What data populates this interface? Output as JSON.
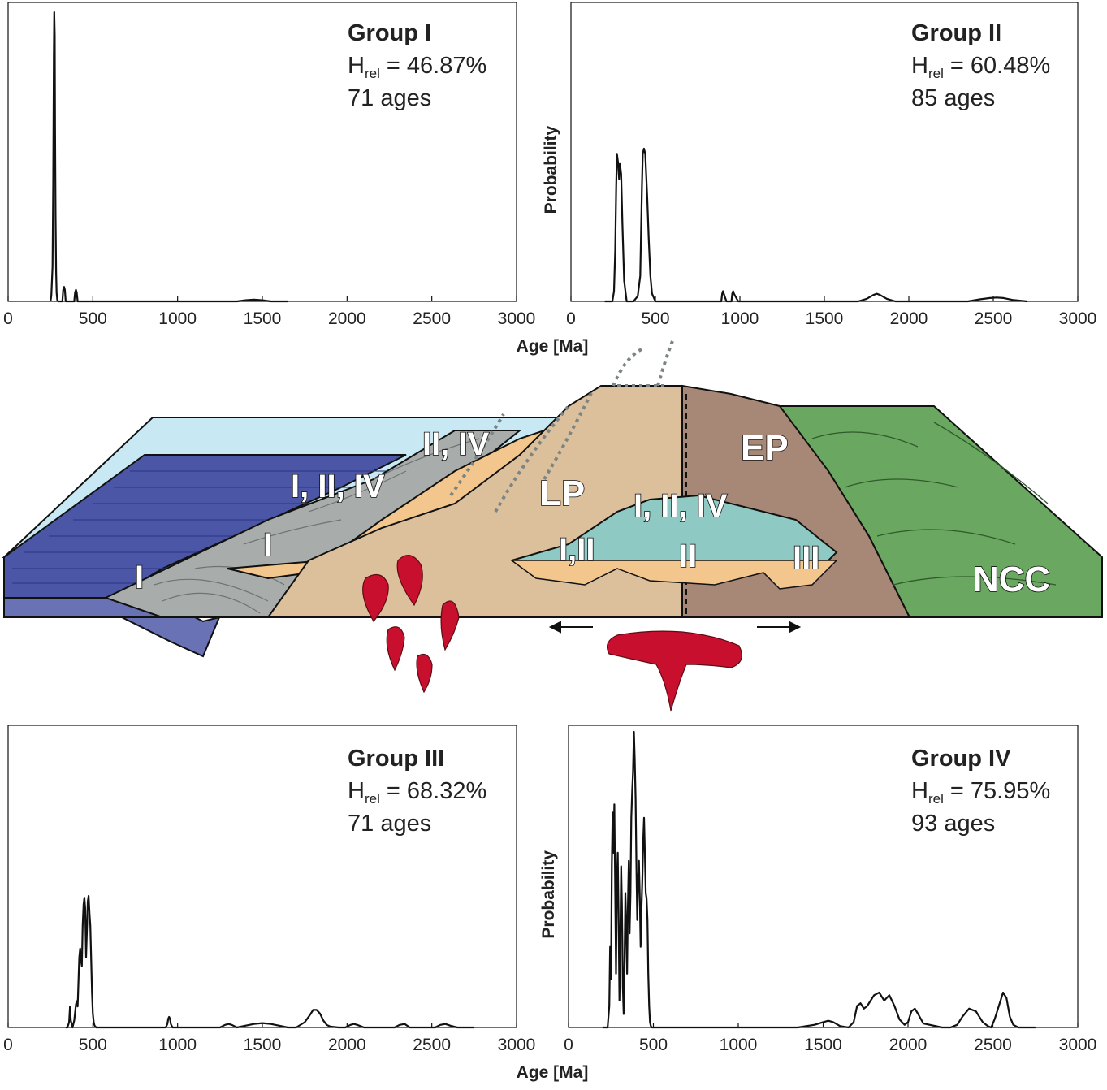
{
  "chart_data": [
    {
      "type": "line",
      "title": "Group I",
      "hrel_prefix": "H",
      "hrel_sub": "rel",
      "hrel_value": " = 46.87%",
      "count_text": "71 ages",
      "xlabel": "",
      "ylabel": "",
      "xlim": [
        0,
        3000
      ],
      "xticks": [
        "0",
        "500",
        "1000",
        "1500",
        "2000",
        "2500",
        "3000"
      ],
      "series": [
        {
          "x": [
            250,
            255,
            262,
            266,
            270,
            272,
            275,
            277,
            280,
            283,
            286,
            290,
            295,
            300,
            320,
            325,
            330,
            335,
            340,
            390,
            395,
            400,
            405,
            410,
            1350,
            1400,
            1450,
            1500,
            1550,
            1650
          ],
          "y": [
            0,
            2,
            12,
            40,
            85,
            100,
            92,
            60,
            30,
            10,
            3,
            0.5,
            0,
            0,
            0,
            4,
            5,
            4,
            0,
            0,
            3,
            4,
            3,
            0,
            0,
            0.4,
            0.6,
            0.4,
            0,
            0
          ]
        }
      ]
    },
    {
      "type": "line",
      "title": "Group II",
      "hrel_prefix": "H",
      "hrel_sub": "rel",
      "hrel_value": " = 60.48%",
      "count_text": "85 ages",
      "xlabel": "Age [Ma]",
      "ylabel": "Probability",
      "xlim": [
        0,
        3000
      ],
      "xticks": [
        "0",
        "500",
        "1000",
        "1500",
        "2000",
        "2500",
        "3000"
      ],
      "series": [
        {
          "x": [
            200,
            245,
            255,
            262,
            268,
            272,
            280,
            285,
            290,
            297,
            305,
            315,
            330,
            370,
            395,
            410,
            420,
            425,
            432,
            440,
            445,
            452,
            460,
            470,
            480,
            500,
            520,
            870,
            890,
            895,
            900,
            905,
            920,
            930,
            950,
            955,
            960,
            965,
            990,
            1700,
            1750,
            1790,
            1810,
            1830,
            1870,
            1920,
            2350,
            2420,
            2480,
            2520,
            2560,
            2620,
            2700
          ],
          "y": [
            0,
            0,
            4,
            20,
            45,
            58,
            54,
            48,
            54,
            50,
            30,
            8,
            0,
            0,
            2,
            10,
            45,
            58,
            60,
            58,
            50,
            40,
            25,
            10,
            3,
            0,
            0,
            0,
            0,
            3,
            4,
            3,
            0,
            0,
            0,
            3,
            4,
            3,
            0,
            0,
            1,
            2.5,
            3,
            2.5,
            1,
            0,
            0,
            0.8,
            1.3,
            1.5,
            1.3,
            0.5,
            0
          ]
        }
      ]
    },
    {
      "type": "line",
      "title": "Group III",
      "hrel_prefix": "H",
      "hrel_sub": "rel",
      "hrel_value": " = 68.32%",
      "count_text": "71 ages",
      "xlabel": "",
      "ylabel": "",
      "xlim": [
        0,
        3000
      ],
      "xticks": [
        "0",
        "500",
        "1000",
        "1500",
        "2000",
        "2500",
        "3000"
      ],
      "series": [
        {
          "x": [
            340,
            350,
            360,
            365,
            370,
            380,
            390,
            400,
            405,
            410,
            420,
            425,
            430,
            435,
            440,
            445,
            450,
            455,
            460,
            465,
            470,
            475,
            480,
            485,
            490,
            495,
            500,
            505,
            510,
            520,
            900,
            930,
            940,
            945,
            950,
            955,
            960,
            970,
            1100,
            1250,
            1280,
            1300,
            1320,
            1350,
            1400,
            1450,
            1500,
            1550,
            1600,
            1650,
            1700,
            1750,
            1780,
            1800,
            1820,
            1840,
            1860,
            1880,
            1900,
            1950,
            1990,
            2020,
            2040,
            2060,
            2100,
            2200,
            2280,
            2310,
            2340,
            2370,
            2450,
            2520,
            2550,
            2580,
            2610,
            2650,
            2750
          ],
          "y": [
            0,
            0,
            3,
            12,
            4,
            0,
            4,
            13,
            15,
            12,
            40,
            45,
            38,
            35,
            58,
            70,
            74,
            68,
            40,
            55,
            72,
            75,
            65,
            58,
            40,
            20,
            8,
            3,
            1,
            0,
            0,
            0,
            2,
            5,
            6,
            5,
            2,
            0,
            0,
            0,
            1.5,
            2,
            1.5,
            0,
            1,
            2,
            2.5,
            2,
            1,
            0,
            0,
            3,
            7,
            10,
            10,
            8,
            4,
            1.5,
            0.5,
            0,
            0,
            1.5,
            2,
            1.5,
            0,
            0,
            0,
            1.5,
            2,
            0,
            0,
            0,
            1.5,
            2,
            1,
            0,
            0
          ]
        }
      ]
    },
    {
      "type": "line",
      "title": "Group IV",
      "hrel_prefix": "H",
      "hrel_sub": "rel",
      "hrel_value": " = 75.95%",
      "count_text": "93 ages",
      "xlabel": "Age [Ma]",
      "ylabel": "Probability",
      "xlim": [
        0,
        3000
      ],
      "xticks": [
        "0",
        "500",
        "1000",
        "1500",
        "2000",
        "2500",
        "3000"
      ],
      "series": [
        {
          "x": [
            200,
            230,
            240,
            245,
            250,
            255,
            260,
            265,
            270,
            275,
            280,
            285,
            290,
            295,
            300,
            305,
            310,
            315,
            320,
            325,
            330,
            335,
            340,
            345,
            350,
            355,
            360,
            365,
            370,
            375,
            380,
            385,
            390,
            395,
            400,
            405,
            410,
            415,
            420,
            425,
            430,
            435,
            440,
            445,
            450,
            455,
            460,
            465,
            470,
            475,
            480,
            485,
            490,
            495,
            500,
            505,
            510,
            520,
            1150,
            1350,
            1450,
            1500,
            1530,
            1560,
            1600,
            1650,
            1680,
            1700,
            1720,
            1740,
            1760,
            1780,
            1800,
            1830,
            1860,
            1890,
            1920,
            1950,
            1980,
            2000,
            2020,
            2040,
            2060,
            2090,
            2200,
            2250,
            2290,
            2320,
            2360,
            2400,
            2440,
            2470,
            2490,
            2510,
            2540,
            2560,
            2580,
            2600,
            2620,
            2650,
            2750
          ],
          "y": [
            0,
            0,
            8,
            30,
            18,
            60,
            80,
            65,
            83,
            50,
            20,
            55,
            65,
            40,
            10,
            30,
            60,
            45,
            15,
            5,
            25,
            50,
            38,
            20,
            45,
            62,
            35,
            50,
            78,
            88,
            95,
            110,
            100,
            85,
            60,
            40,
            55,
            62,
            48,
            30,
            45,
            55,
            70,
            78,
            65,
            50,
            48,
            40,
            20,
            8,
            2,
            0.5,
            0,
            0,
            0,
            0,
            0,
            0,
            0,
            0,
            1,
            2,
            2.5,
            2,
            0.5,
            0,
            2,
            8,
            9,
            7,
            8,
            10,
            12,
            13,
            10,
            12,
            8,
            3,
            1,
            2,
            6,
            7,
            5,
            1.5,
            0,
            0,
            1,
            4,
            7,
            6,
            2,
            0.5,
            0,
            3,
            9,
            13,
            11,
            4,
            1,
            0,
            0
          ]
        }
      ]
    }
  ],
  "diagram": {
    "labels": {
      "ii_iv": "II, IV",
      "i_ii_iv_left": "I, II, IV",
      "lp": "LP",
      "ep": "EP",
      "i_upper": "I",
      "i_left": "I",
      "i_ii_iv_right": "I, II, IV",
      "i_ii": "I,II",
      "ii": "II",
      "iii": "III",
      "ncc": "NCC"
    },
    "colors": {
      "ocean": "#c8e9f4",
      "oceanic_plate": "#4b57a6",
      "accretionary_wedge": "#a8acab",
      "sandy_fill": "#f2c68c",
      "lp_arc": "#dcc09c",
      "ep_arc": "#a78775",
      "basin": "#8ec9c3",
      "ncc": "#6aa861",
      "magma": "#c8102e"
    }
  }
}
